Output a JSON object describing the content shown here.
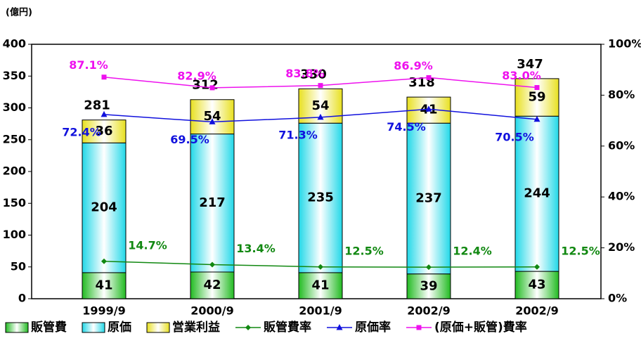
{
  "chart_data": {
    "type": "bar",
    "stacked": true,
    "unit_label": "(億円)",
    "categories": [
      "1999/9",
      "2000/9",
      "2001/9",
      "2002/9",
      "2002/9"
    ],
    "series": [
      {
        "name": "販管費",
        "color": "#22bb22",
        "values": [
          41,
          42,
          41,
          39,
          43
        ]
      },
      {
        "name": "原価",
        "color": "#22d8e8",
        "values": [
          204,
          217,
          235,
          237,
          244
        ]
      },
      {
        "name": "営業利益",
        "color": "#e8e020",
        "values": [
          36,
          54,
          54,
          41,
          59
        ]
      },
      {
        "name": "販管費率",
        "type": "line",
        "axis": "y2",
        "color": "#118811",
        "marker": "diamond",
        "values": [
          14.7,
          13.4,
          12.5,
          12.4,
          12.5
        ],
        "value_labels": [
          "14.7%",
          "13.4%",
          "12.5%",
          "12.4%",
          "12.5%"
        ]
      },
      {
        "name": "原価率",
        "type": "line",
        "axis": "y2",
        "color": "#1111dd",
        "marker": "triangle",
        "values": [
          72.4,
          69.5,
          71.3,
          74.5,
          70.5
        ],
        "value_labels": [
          "72.4%",
          "69.5%",
          "71.3%",
          "74.5%",
          "70.5%"
        ]
      },
      {
        "name": "(原価+販管)費率",
        "type": "line",
        "axis": "y2",
        "color": "#ee11ee",
        "marker": "square",
        "values": [
          87.1,
          82.9,
          83.8,
          86.9,
          83.0
        ],
        "value_labels": [
          "87.1%",
          "82.9%",
          "83.8%",
          "86.9%",
          "83.0%"
        ]
      }
    ],
    "totals": [
      281,
      312,
      330,
      318,
      347
    ],
    "ylim": [
      0,
      400
    ],
    "yticks": [
      0,
      50,
      100,
      150,
      200,
      250,
      300,
      350,
      400
    ],
    "y2lim": [
      0,
      100
    ],
    "y2ticks": [
      {
        "value": 0,
        "label": "0%"
      },
      {
        "value": 20,
        "label": "20%"
      },
      {
        "value": 40,
        "label": "40%"
      },
      {
        "value": 60,
        "label": "60%"
      },
      {
        "value": 80,
        "label": "80%"
      },
      {
        "value": 100,
        "label": "100%"
      }
    ],
    "legend": "bottom"
  }
}
